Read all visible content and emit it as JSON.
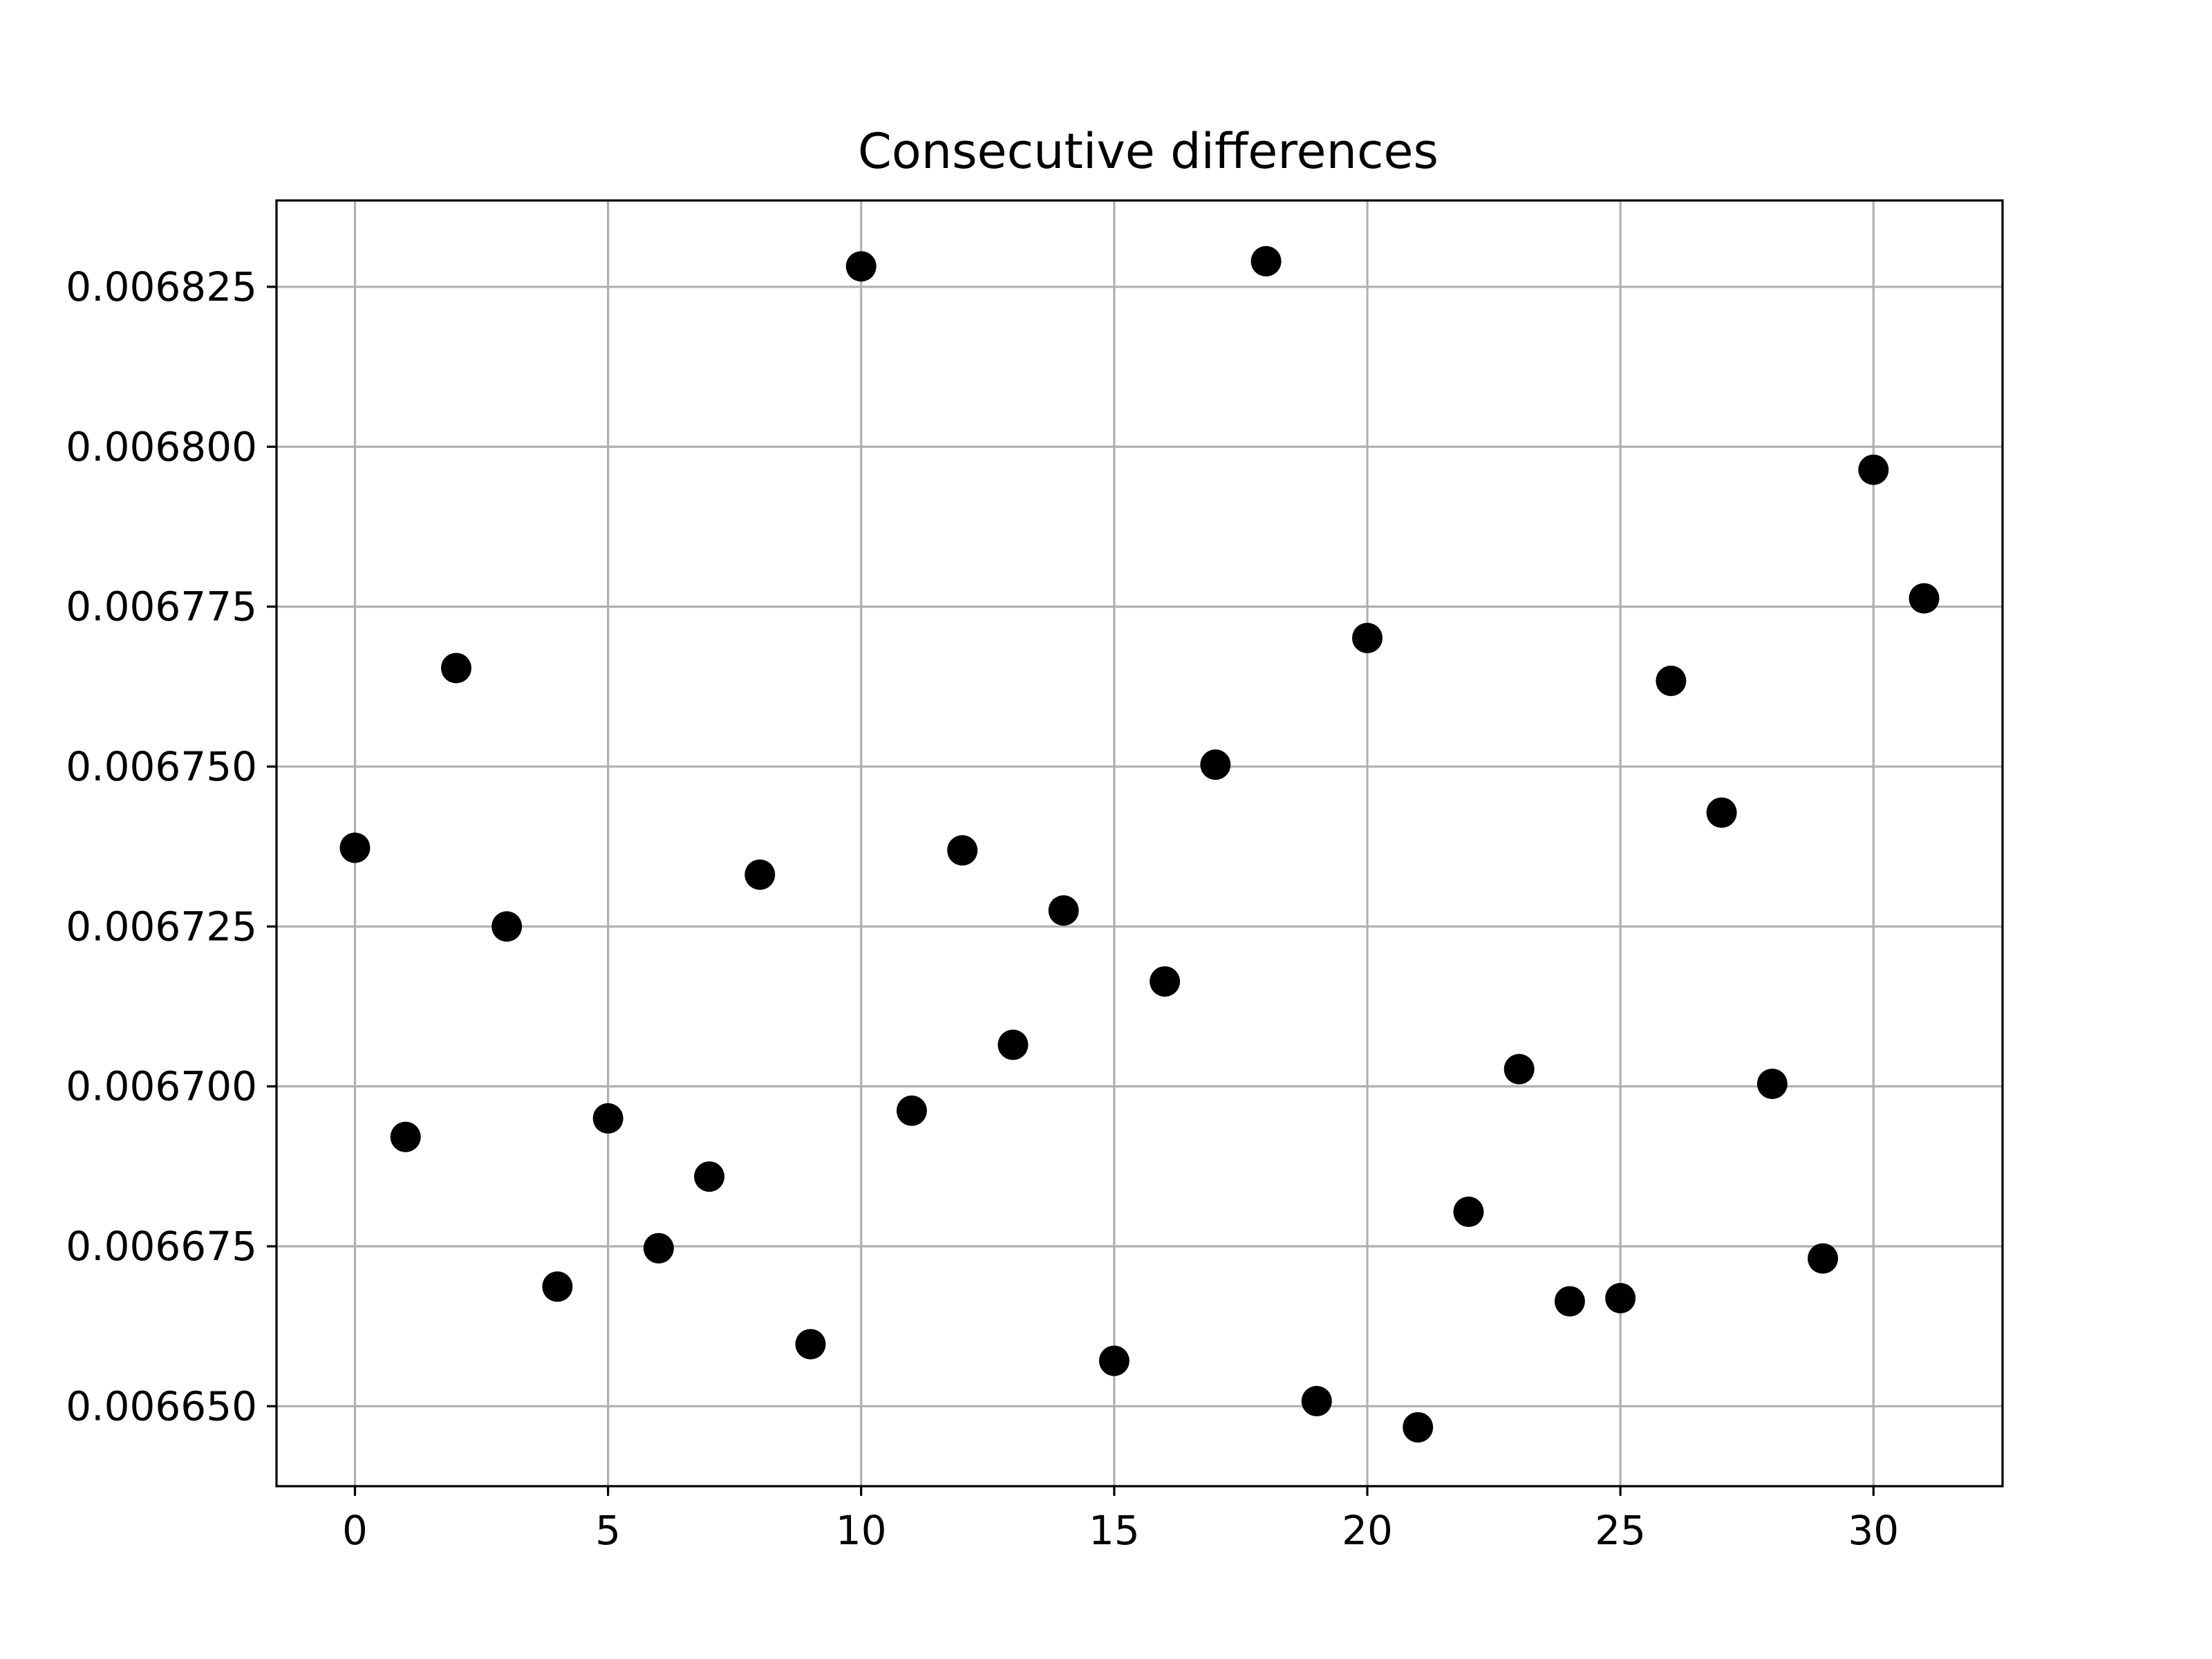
{
  "chart_data": {
    "type": "scatter",
    "title": "Consecutive differences",
    "xlabel": "",
    "ylabel": "",
    "xlim": [
      -1.55,
      32.55
    ],
    "ylim": [
      0.0066375,
      0.0068385
    ],
    "grid": true,
    "legend": "none",
    "colors": {
      "marker": "#000000",
      "grid": "#b0b0b0",
      "axes": "#000000"
    },
    "xticks": [
      0,
      5,
      10,
      15,
      20,
      25,
      30
    ],
    "xtick_labels": [
      "0",
      "5",
      "10",
      "15",
      "20",
      "25",
      "30"
    ],
    "yticks": [
      0.00665,
      0.006675,
      0.0067,
      0.006725,
      0.00675,
      0.006775,
      0.0068,
      0.006825
    ],
    "ytick_labels": [
      "0.006650",
      "0.006675",
      "0.006700",
      "0.006725",
      "0.006750",
      "0.006775",
      "0.006800",
      "0.006825"
    ],
    "series": [
      {
        "x": [
          0,
          1,
          2,
          3,
          4,
          5,
          6,
          7,
          8,
          9,
          10,
          11,
          12,
          13,
          14,
          15,
          16,
          17,
          18,
          19,
          20,
          21,
          22,
          23,
          24,
          25,
          26,
          27,
          28,
          29,
          30,
          31
        ],
        "y": [
          0.0067373,
          0.0066921,
          0.0067654,
          0.006725,
          0.0066687,
          0.006695,
          0.0066747,
          0.0066859,
          0.0067331,
          0.0066597,
          0.0068282,
          0.0066962,
          0.0067369,
          0.0067065,
          0.0067275,
          0.0066571,
          0.0067164,
          0.0067503,
          0.006829,
          0.0066508,
          0.0067701,
          0.0066467,
          0.0066804,
          0.0067027,
          0.0066664,
          0.0066669,
          0.0067634,
          0.0067428,
          0.0067004,
          0.0066731,
          0.0067964,
          0.0067763
        ]
      }
    ]
  }
}
